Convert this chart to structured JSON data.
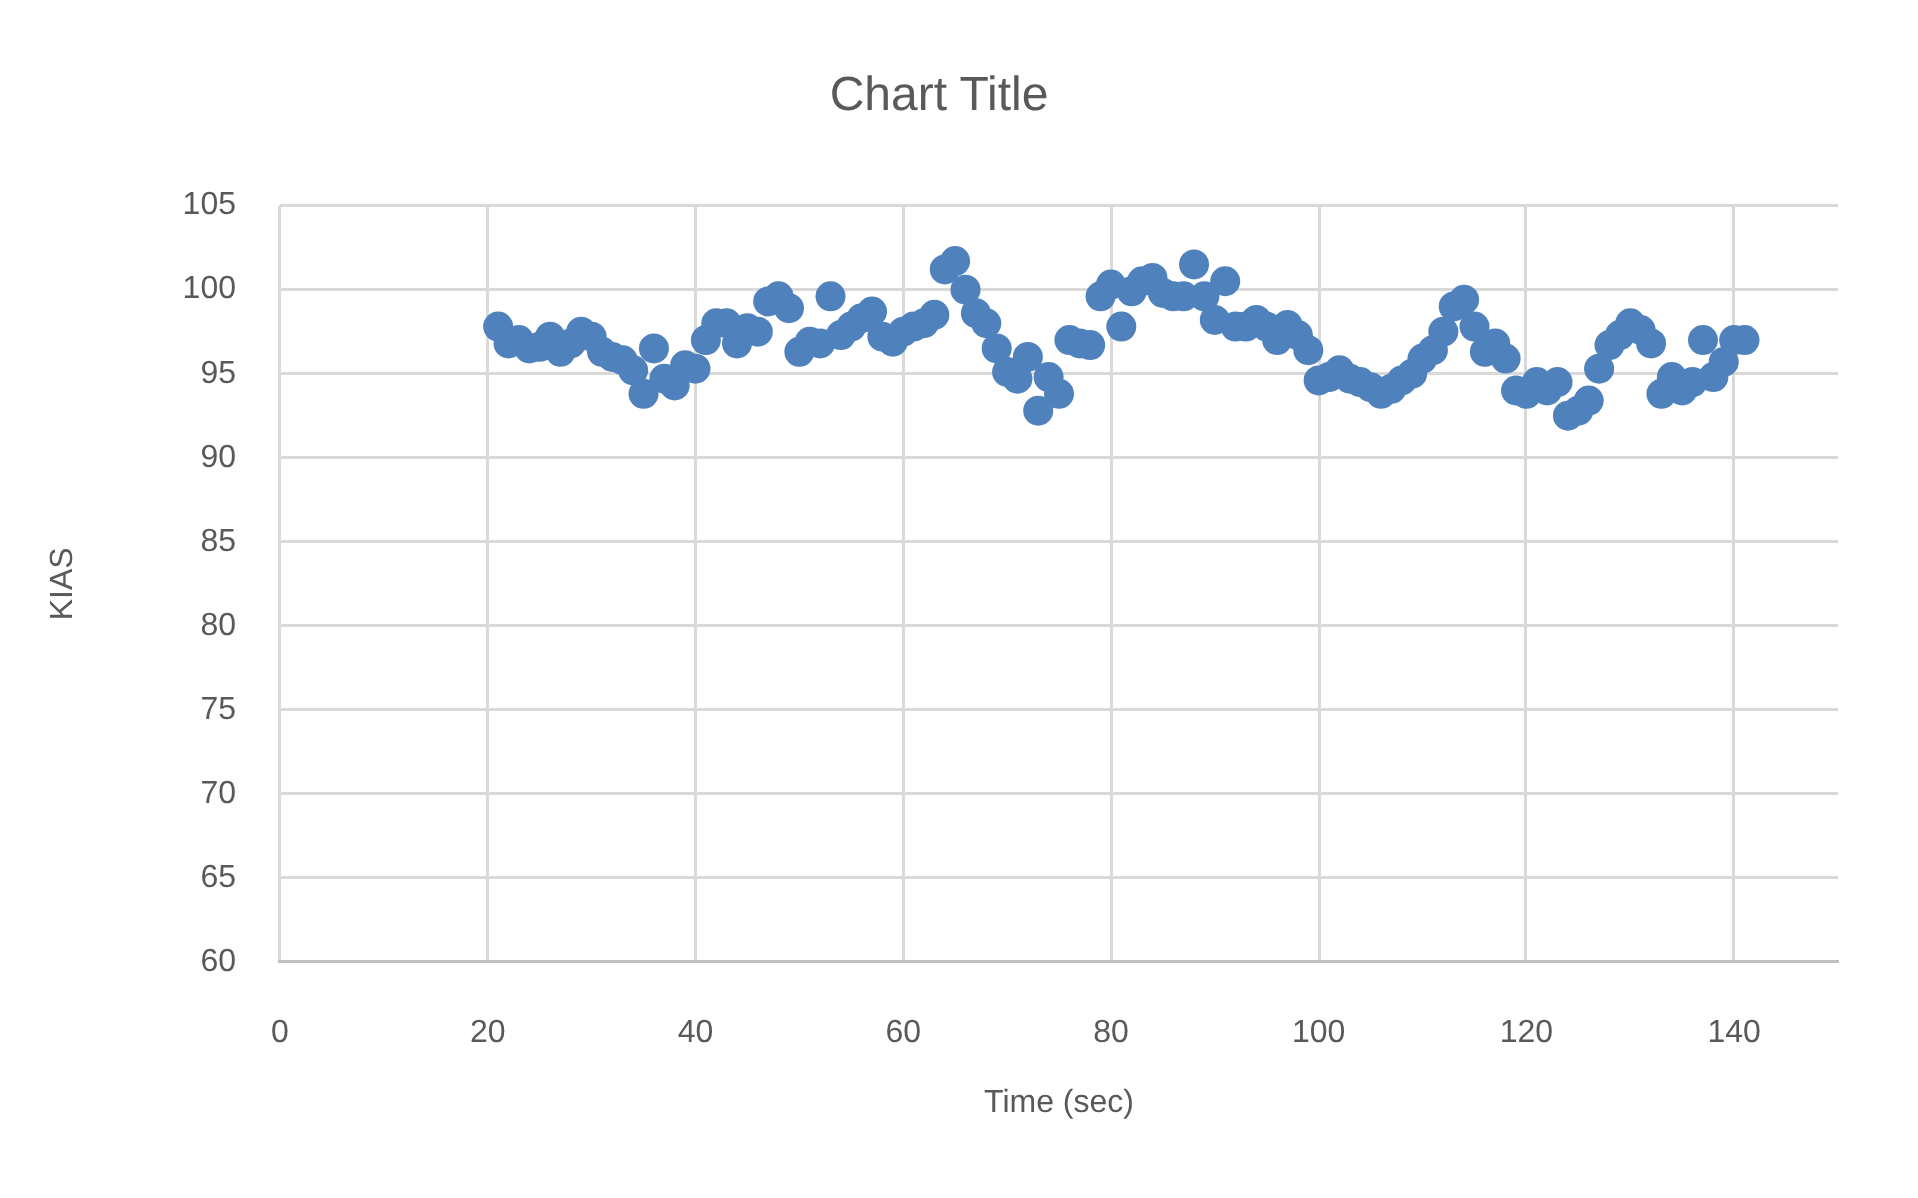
{
  "chart_data": {
    "type": "scatter",
    "title": "Chart Title",
    "xlabel": "Time (sec)",
    "ylabel": "KIAS",
    "x": [
      21,
      22,
      23,
      24,
      25,
      26,
      27,
      28,
      29,
      30,
      31,
      32,
      33,
      34,
      35,
      36,
      37,
      38,
      39,
      40,
      41,
      42,
      43,
      44,
      45,
      46,
      47,
      48,
      49,
      50,
      51,
      52,
      53,
      54,
      55,
      56,
      57,
      58,
      59,
      60,
      61,
      62,
      63,
      64,
      65,
      66,
      67,
      68,
      69,
      70,
      71,
      72,
      73,
      74,
      75,
      76,
      77,
      78,
      79,
      80,
      81,
      82,
      83,
      84,
      85,
      86,
      87,
      88,
      89,
      90,
      91,
      92,
      93,
      94,
      95,
      96,
      97,
      98,
      99,
      100,
      101,
      102,
      103,
      104,
      105,
      106,
      107,
      108,
      109,
      110,
      111,
      112,
      113,
      114,
      115,
      116,
      117,
      118,
      119,
      120,
      121,
      122,
      123,
      124,
      125,
      126,
      127,
      128,
      129,
      130,
      131,
      132,
      133,
      134,
      135,
      136,
      137,
      138,
      139,
      140,
      141
    ],
    "series": [
      {
        "color": "#4f81bd",
        "values": [
          97.8,
          96.8,
          97.0,
          96.5,
          96.6,
          97.2,
          96.3,
          96.8,
          97.5,
          97.2,
          96.3,
          96.0,
          95.8,
          95.2,
          93.8,
          96.5,
          94.7,
          94.3,
          95.5,
          95.3,
          97.0,
          98.0,
          98.0,
          96.8,
          97.7,
          97.5,
          99.3,
          99.6,
          98.9,
          96.3,
          96.9,
          96.8,
          99.6,
          97.3,
          97.8,
          98.3,
          98.7,
          97.2,
          96.9,
          97.5,
          97.8,
          98.0,
          98.5,
          101.2,
          101.7,
          100.0,
          98.6,
          98.0,
          96.5,
          95.1,
          94.7,
          96.0,
          92.8,
          94.8,
          93.8,
          97.0,
          96.8,
          96.7,
          99.6,
          100.3,
          97.8,
          99.9,
          100.5,
          100.7,
          99.8,
          99.6,
          99.6,
          101.5,
          99.6,
          98.2,
          100.5,
          97.8,
          97.8,
          98.2,
          97.8,
          97.0,
          97.9,
          97.3,
          96.4,
          94.6,
          94.8,
          95.2,
          94.7,
          94.5,
          94.2,
          93.8,
          94.1,
          94.6,
          95.0,
          95.9,
          96.4,
          97.5,
          99.0,
          99.4,
          97.8,
          96.3,
          96.8,
          95.9,
          94.0,
          93.8,
          94.5,
          94.0,
          94.5,
          92.5,
          92.8,
          93.4,
          95.3,
          96.7,
          97.3,
          98.0,
          97.6,
          96.8,
          93.8,
          94.8,
          94.0,
          94.5,
          97.0,
          94.8,
          95.7,
          97.0,
          97.0
        ]
      }
    ],
    "xlim": [
      0,
      150
    ],
    "xticks": [
      0,
      20,
      40,
      60,
      80,
      100,
      120,
      140
    ],
    "ylim": [
      60,
      105
    ],
    "yticks": [
      60,
      65,
      70,
      75,
      80,
      85,
      90,
      95,
      100,
      105
    ],
    "grid": true,
    "legend": false,
    "marker": "circle"
  }
}
